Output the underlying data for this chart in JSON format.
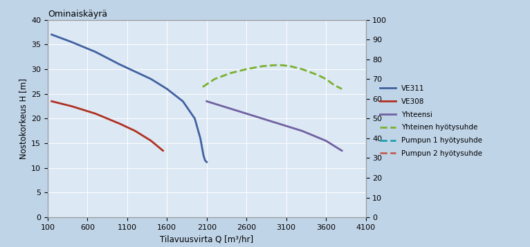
{
  "title": "Ominaiskäyrä",
  "xlabel": "Tilavuusvirta Q [m³/hr]",
  "ylabel_left": "Nostokorkeus H [m]",
  "xlim": [
    100,
    4100
  ],
  "ylim_left": [
    0,
    40
  ],
  "ylim_right": [
    0,
    100
  ],
  "xticks": [
    100,
    600,
    1100,
    1600,
    2100,
    2600,
    3100,
    3600,
    4100
  ],
  "yticks_left": [
    0,
    5,
    10,
    15,
    20,
    25,
    30,
    35,
    40
  ],
  "yticks_right": [
    0,
    10,
    20,
    30,
    40,
    50,
    60,
    70,
    80,
    90,
    100
  ],
  "background_color": "#c0d4e8",
  "plot_bg_color": "#dce8f4",
  "grid_color": "#ffffff",
  "VE311": {
    "x": [
      150,
      400,
      700,
      1000,
      1200,
      1400,
      1600,
      1800,
      1950,
      2020,
      2060,
      2080,
      2100
    ],
    "y": [
      37.0,
      35.5,
      33.5,
      31.0,
      29.5,
      28.0,
      26.0,
      23.5,
      20.0,
      16.0,
      12.5,
      11.5,
      11.2
    ],
    "color": "#4060a0",
    "lw": 2.0,
    "label": "VE311"
  },
  "VE308": {
    "x": [
      150,
      400,
      700,
      1000,
      1200,
      1400,
      1550
    ],
    "y": [
      23.5,
      22.5,
      21.0,
      19.0,
      17.5,
      15.5,
      13.5
    ],
    "color": "#b03020",
    "lw": 2.0,
    "label": "VE308"
  },
  "Yhteensa": {
    "x": [
      2100,
      2300,
      2600,
      2900,
      3100,
      3300,
      3600,
      3800
    ],
    "y": [
      23.5,
      22.5,
      21.0,
      19.5,
      18.5,
      17.5,
      15.5,
      13.5
    ],
    "color": "#7060a0",
    "lw": 2.0,
    "label": "Yhteensi"
  },
  "Yhteinen_hyotysuhde": {
    "x": [
      2050,
      2200,
      2400,
      2600,
      2800,
      2950,
      3050,
      3150,
      3300,
      3500,
      3600,
      3700,
      3800
    ],
    "y": [
      66,
      70,
      73,
      75,
      76.5,
      77,
      77,
      76.5,
      75,
      72,
      70,
      67,
      65
    ],
    "color": "#7ab030",
    "lw": 2.0,
    "label": "Yhteinen hyötysuhde",
    "linestyle": "--"
  },
  "Pumpun1_hyotysuhde": {
    "x": [],
    "y": [],
    "color": "#20a0b0",
    "lw": 1.5,
    "label": "Pumpun 1 hyötysuhde",
    "linestyle": "--"
  },
  "Pumpun2_hyotysuhde": {
    "x": [],
    "y": [],
    "color": "#c06050",
    "lw": 1.5,
    "label": "Pumpun 2 hyötysuhde",
    "linestyle": "--"
  },
  "legend_colors": {
    "VE311": "#4060a0",
    "VE308": "#b03020",
    "Yhteensa": "#7060a0",
    "Yhteinen_hyotysuhde": "#7ab030",
    "Pumpun1_hyotysuhde": "#20a0b0",
    "Pumpun2_hyotysuhde": "#c06050"
  }
}
